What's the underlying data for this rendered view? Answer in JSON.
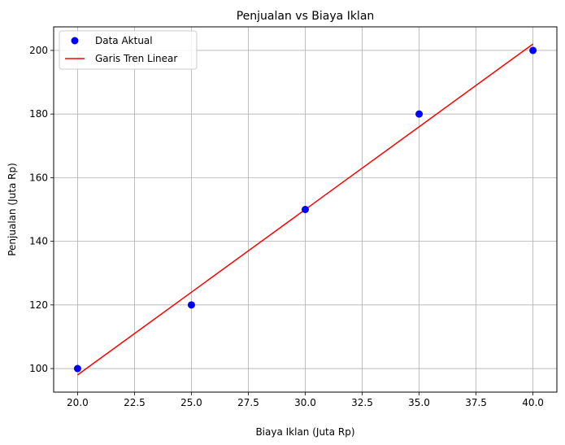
{
  "chart_data": {
    "type": "scatter",
    "title": "Penjualan vs Biaya Iklan",
    "xlabel": "Biaya Iklan (Juta Rp)",
    "ylabel": "Penjualan (Juta Rp)",
    "xlim": [
      18.95,
      41.05
    ],
    "ylim": [
      92.6,
      207.4
    ],
    "xticks": [
      20.0,
      22.5,
      25.0,
      27.5,
      30.0,
      32.5,
      35.0,
      37.5,
      40.0
    ],
    "xtick_labels": [
      "20.0",
      "22.5",
      "25.0",
      "27.5",
      "30.0",
      "32.5",
      "35.0",
      "37.5",
      "40.0"
    ],
    "yticks": [
      100,
      120,
      140,
      160,
      180,
      200
    ],
    "ytick_labels": [
      "100",
      "120",
      "140",
      "160",
      "180",
      "200"
    ],
    "grid": true,
    "legend_position": "top-left",
    "series": [
      {
        "name": "Data Aktual",
        "kind": "scatter",
        "color": "#0000ff",
        "x": [
          20,
          25,
          30,
          35,
          40
        ],
        "y": [
          100,
          120,
          150,
          180,
          200
        ]
      },
      {
        "name": "Garis Tren Linear",
        "kind": "line",
        "color": "#ff0000",
        "x": [
          20,
          40
        ],
        "y": [
          98,
          202
        ]
      }
    ]
  }
}
